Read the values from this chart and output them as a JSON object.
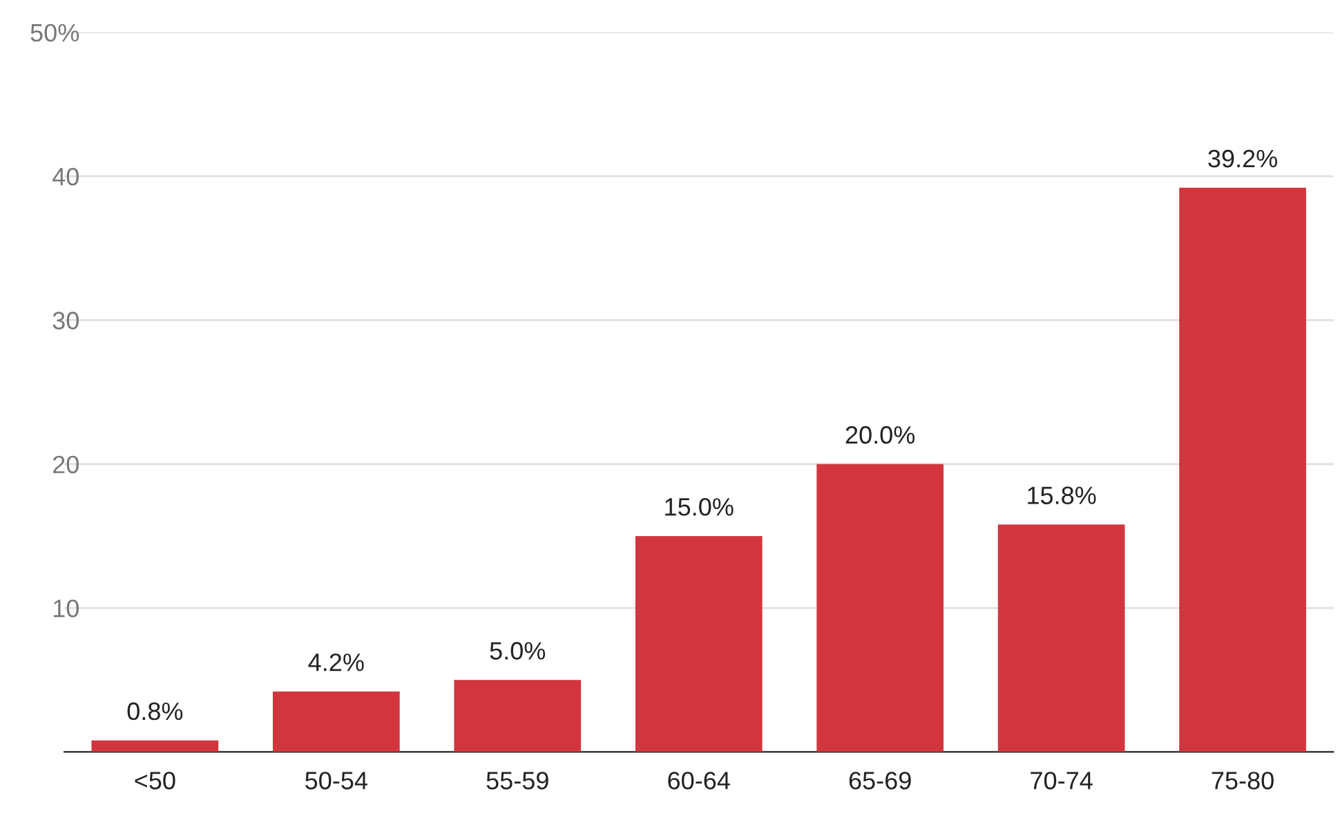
{
  "chart_data": {
    "type": "bar",
    "categories": [
      "<50",
      "50-54",
      "55-59",
      "60-64",
      "65-69",
      "70-74",
      "75-80"
    ],
    "values": [
      0.8,
      4.2,
      5.0,
      15.0,
      20.0,
      15.8,
      39.2
    ],
    "value_labels": [
      "0.8%",
      "4.2%",
      "5.0%",
      "15.0%",
      "20.0%",
      "15.8%",
      "39.2%"
    ],
    "color": "#d1363e",
    "ylim": [
      0,
      50
    ],
    "yticks": [
      10,
      20,
      30,
      40,
      {
        "value": 50,
        "label": "50%"
      }
    ],
    "grid": "y"
  }
}
